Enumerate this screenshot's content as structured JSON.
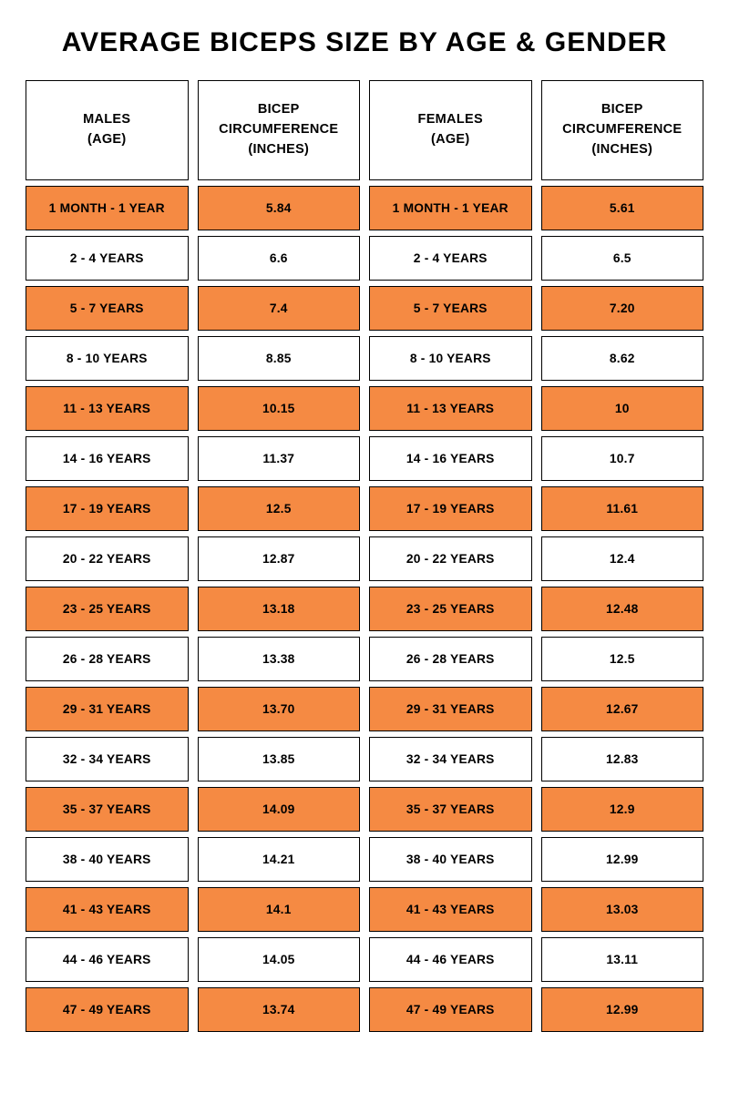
{
  "title": "AVERAGE BICEPS SIZE BY AGE & GENDER",
  "colors": {
    "row_odd_bg": "#f58a43",
    "row_even_bg": "#ffffff",
    "border": "#000000",
    "text": "#000000",
    "page_bg": "#ffffff"
  },
  "table": {
    "type": "table",
    "columns": [
      {
        "line1": "MALES",
        "line2": "(AGE)"
      },
      {
        "line1": "BICEP",
        "line2": "CIRCUMFERENCE",
        "line3": "(INCHES)"
      },
      {
        "line1": "FEMALES",
        "line2": "(AGE)"
      },
      {
        "line1": "BICEP",
        "line2": "CIRCUMFERENCE",
        "line3": "(INCHES)"
      }
    ],
    "rows": [
      {
        "male_age": "1 MONTH - 1 YEAR",
        "male_val": "5.84",
        "female_age": "1 MONTH - 1 YEAR",
        "female_val": "5.61"
      },
      {
        "male_age": "2 - 4 YEARS",
        "male_val": "6.6",
        "female_age": "2 - 4 YEARS",
        "female_val": "6.5"
      },
      {
        "male_age": "5 - 7 YEARS",
        "male_val": "7.4",
        "female_age": "5 - 7 YEARS",
        "female_val": "7.20"
      },
      {
        "male_age": "8 - 10 YEARS",
        "male_val": "8.85",
        "female_age": "8 - 10 YEARS",
        "female_val": "8.62"
      },
      {
        "male_age": "11 - 13 YEARS",
        "male_val": "10.15",
        "female_age": "11 - 13 YEARS",
        "female_val": "10"
      },
      {
        "male_age": "14 - 16 YEARS",
        "male_val": "11.37",
        "female_age": "14 - 16 YEARS",
        "female_val": "10.7"
      },
      {
        "male_age": "17 - 19 YEARS",
        "male_val": "12.5",
        "female_age": "17 - 19 YEARS",
        "female_val": "11.61"
      },
      {
        "male_age": "20 - 22 YEARS",
        "male_val": "12.87",
        "female_age": "20 - 22 YEARS",
        "female_val": "12.4"
      },
      {
        "male_age": "23 - 25 YEARS",
        "male_val": "13.18",
        "female_age": "23 - 25 YEARS",
        "female_val": "12.48"
      },
      {
        "male_age": "26 - 28 YEARS",
        "male_val": "13.38",
        "female_age": "26 - 28 YEARS",
        "female_val": "12.5"
      },
      {
        "male_age": "29 - 31 YEARS",
        "male_val": "13.70",
        "female_age": "29 - 31 YEARS",
        "female_val": "12.67"
      },
      {
        "male_age": "32 - 34 YEARS",
        "male_val": "13.85",
        "female_age": "32 - 34 YEARS",
        "female_val": "12.83"
      },
      {
        "male_age": "35 - 37 YEARS",
        "male_val": "14.09",
        "female_age": "35 - 37 YEARS",
        "female_val": "12.9"
      },
      {
        "male_age": "38 - 40 YEARS",
        "male_val": "14.21",
        "female_age": "38 - 40 YEARS",
        "female_val": "12.99"
      },
      {
        "male_age": "41 - 43 YEARS",
        "male_val": "14.1",
        "female_age": "41 - 43 YEARS",
        "female_val": "13.03"
      },
      {
        "male_age": "44 - 46 YEARS",
        "male_val": "14.05",
        "female_age": "44 - 46 YEARS",
        "female_val": "13.11"
      },
      {
        "male_age": "47 - 49 YEARS",
        "male_val": "13.74",
        "female_age": "47 - 49 YEARS",
        "female_val": "12.99"
      }
    ]
  }
}
